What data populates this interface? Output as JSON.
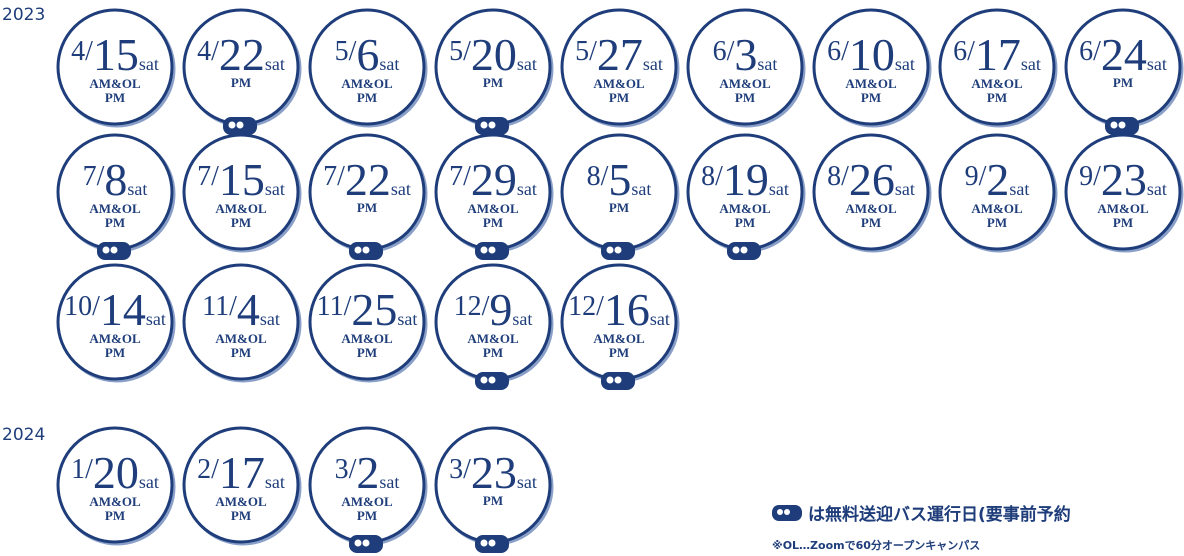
{
  "years": [
    {
      "year": "2023",
      "dates": [
        {
          "month": "4/",
          "day": "15",
          "weekday": "sat",
          "sessions": [
            "AM&OL",
            "PM"
          ],
          "bus": false
        },
        {
          "month": "4/",
          "day": "22",
          "weekday": "sat",
          "sessions": [
            "PM"
          ],
          "bus": true
        },
        {
          "month": "5/",
          "day": "6",
          "weekday": "sat",
          "sessions": [
            "AM&OL",
            "PM"
          ],
          "bus": false
        },
        {
          "month": "5/",
          "day": "20",
          "weekday": "sat",
          "sessions": [
            "PM"
          ],
          "bus": true
        },
        {
          "month": "5/",
          "day": "27",
          "weekday": "sat",
          "sessions": [
            "AM&OL",
            "PM"
          ],
          "bus": false
        },
        {
          "month": "6/",
          "day": "3",
          "weekday": "sat",
          "sessions": [
            "AM&OL",
            "PM"
          ],
          "bus": false
        },
        {
          "month": "6/",
          "day": "10",
          "weekday": "sat",
          "sessions": [
            "AM&OL",
            "PM"
          ],
          "bus": false
        },
        {
          "month": "6/",
          "day": "17",
          "weekday": "sat",
          "sessions": [
            "AM&OL",
            "PM"
          ],
          "bus": false
        },
        {
          "month": "6/",
          "day": "24",
          "weekday": "sat",
          "sessions": [
            "PM"
          ],
          "bus": true
        },
        {
          "month": "7/",
          "day": "8",
          "weekday": "sat",
          "sessions": [
            "AM&OL",
            "PM"
          ],
          "bus": true
        },
        {
          "month": "7/",
          "day": "15",
          "weekday": "sat",
          "sessions": [
            "AM&OL",
            "PM"
          ],
          "bus": false
        },
        {
          "month": "7/",
          "day": "22",
          "weekday": "sat",
          "sessions": [
            "PM"
          ],
          "bus": true
        },
        {
          "month": "7/",
          "day": "29",
          "weekday": "sat",
          "sessions": [
            "AM&OL",
            "PM"
          ],
          "bus": true
        },
        {
          "month": "8/",
          "day": "5",
          "weekday": "sat",
          "sessions": [
            "PM"
          ],
          "bus": true
        },
        {
          "month": "8/",
          "day": "19",
          "weekday": "sat",
          "sessions": [
            "AM&OL",
            "PM"
          ],
          "bus": true
        },
        {
          "month": "8/",
          "day": "26",
          "weekday": "sat",
          "sessions": [
            "AM&OL",
            "PM"
          ],
          "bus": false
        },
        {
          "month": "9/",
          "day": "2",
          "weekday": "sat",
          "sessions": [
            "AM&OL",
            "PM"
          ],
          "bus": false
        },
        {
          "month": "9/",
          "day": "23",
          "weekday": "sat",
          "sessions": [
            "AM&OL",
            "PM"
          ],
          "bus": false
        },
        {
          "month": "10/",
          "day": "14",
          "weekday": "sat",
          "sessions": [
            "AM&OL",
            "PM"
          ],
          "bus": false
        },
        {
          "month": "11/",
          "day": "4",
          "weekday": "sat",
          "sessions": [
            "AM&OL",
            "PM"
          ],
          "bus": false
        },
        {
          "month": "11/",
          "day": "25",
          "weekday": "sat",
          "sessions": [
            "AM&OL",
            "PM"
          ],
          "bus": false
        },
        {
          "month": "12/",
          "day": "9",
          "weekday": "sat",
          "sessions": [
            "AM&OL",
            "PM"
          ],
          "bus": true
        },
        {
          "month": "12/",
          "day": "16",
          "weekday": "sat",
          "sessions": [
            "AM&OL",
            "PM"
          ],
          "bus": true
        }
      ]
    },
    {
      "year": "2024",
      "dates": [
        {
          "month": "1/",
          "day": "20",
          "weekday": "sat",
          "sessions": [
            "AM&OL",
            "PM"
          ],
          "bus": false
        },
        {
          "month": "2/",
          "day": "17",
          "weekday": "sat",
          "sessions": [
            "AM&OL",
            "PM"
          ],
          "bus": false
        },
        {
          "month": "3/",
          "day": "2",
          "weekday": "sat",
          "sessions": [
            "AM&OL",
            "PM"
          ],
          "bus": true
        },
        {
          "month": "3/",
          "day": "23",
          "weekday": "sat",
          "sessions": [
            "PM"
          ],
          "bus": true
        }
      ]
    }
  ],
  "legend": {
    "text": "は無料送迎バス運行日(要事前予約",
    "note": "※OL…Zoomで60分オープンキャンパス"
  }
}
